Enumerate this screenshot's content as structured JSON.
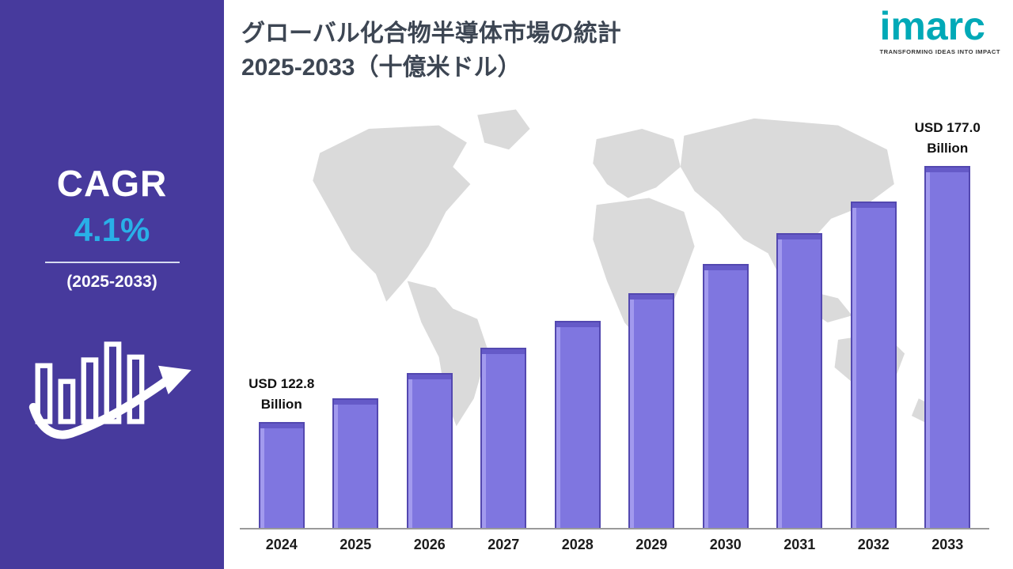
{
  "sidebar": {
    "cagr_label": "CAGR",
    "cagr_value": "4.1%",
    "period": "(2025-2033)",
    "bg_color": "#473a9d",
    "accent_color": "#29b0e8"
  },
  "header": {
    "title_line1": "グローバル化合物半導体市場の統計",
    "title_line2": "2025-2033（十億米ドル）",
    "logo_text": "imarc",
    "logo_tagline": "TRANSFORMING IDEAS INTO IMPACT",
    "logo_color": "#00a9b7"
  },
  "chart_data": {
    "type": "bar",
    "title": "グローバル化合物半導体市場の統計 2025-2033（十億米ドル）",
    "categories": [
      "2024",
      "2025",
      "2026",
      "2027",
      "2028",
      "2029",
      "2030",
      "2031",
      "2032",
      "2033"
    ],
    "values": [
      122.8,
      127.8,
      133.1,
      138.5,
      144.2,
      150.1,
      156.3,
      162.7,
      169.4,
      177.0
    ],
    "xlabel": "",
    "ylabel": "USD Billion",
    "ylim": [
      100,
      180
    ],
    "grid": false,
    "legend_position": "none",
    "bar_color": "#7f76e0",
    "bar_border_color": "#5348b0",
    "annotations": [
      {
        "index": 0,
        "line1": "USD 122.8",
        "line2": "Billion"
      },
      {
        "index": 9,
        "line1": "USD 177.0",
        "line2": "Billion"
      }
    ]
  }
}
